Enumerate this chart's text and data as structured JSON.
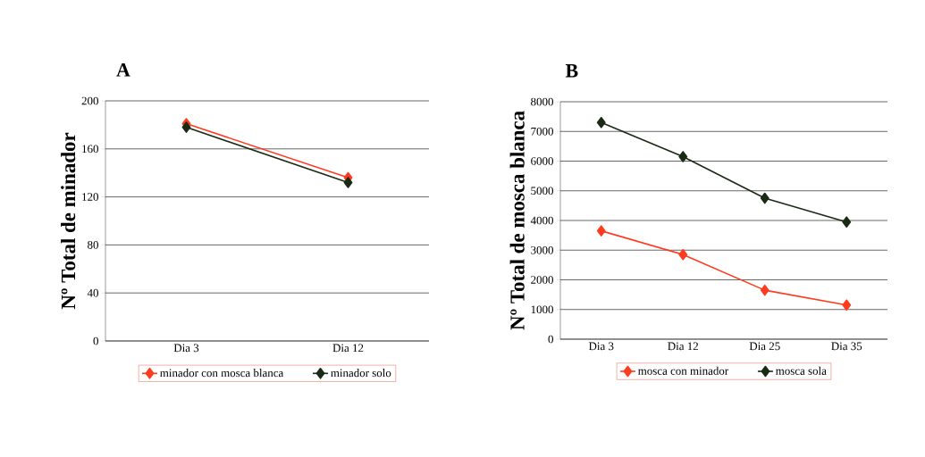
{
  "chart_data": [
    {
      "type": "line",
      "title": "A",
      "ylabel": "Nº Total de minador",
      "categories": [
        "Dia 3",
        "Dia 12"
      ],
      "ylim": [
        0,
        200
      ],
      "yticks": [
        0,
        40,
        80,
        120,
        160,
        200
      ],
      "grid": "y",
      "legend": "bottom",
      "marker": "diamond",
      "line_style": "solid",
      "series": [
        {
          "name": "minador con mosca blanca",
          "color": "#ff3b1f",
          "values": [
            181,
            136
          ]
        },
        {
          "name": "minador solo",
          "color": "#1a2a14",
          "values": [
            178,
            132
          ]
        }
      ]
    },
    {
      "type": "line",
      "title": "B",
      "ylabel": "Nº Total de mosca blanca",
      "categories": [
        "Dia 3",
        "Dia 12",
        "Dia 25",
        "Dia 35"
      ],
      "ylim": [
        0,
        8000
      ],
      "yticks": [
        0,
        1000,
        2000,
        3000,
        4000,
        5000,
        6000,
        7000,
        8000
      ],
      "grid": "y",
      "legend": "bottom",
      "marker": "diamond",
      "line_style": "solid",
      "series": [
        {
          "name": "mosca con minador",
          "color": "#ff3b1f",
          "values": [
            3650,
            2850,
            1650,
            1150
          ]
        },
        {
          "name": "mosca sola",
          "color": "#1a2a14",
          "values": [
            7300,
            6150,
            4750,
            3950
          ]
        }
      ]
    }
  ]
}
